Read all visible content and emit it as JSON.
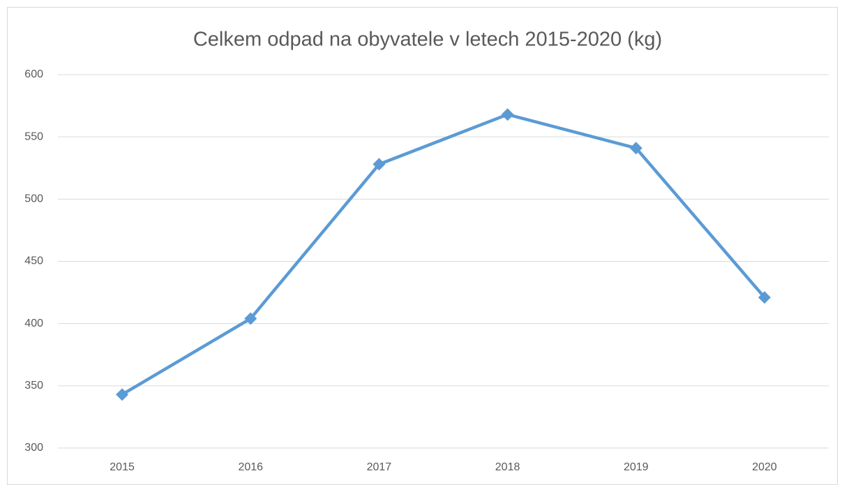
{
  "chart_data": {
    "type": "line",
    "title": "Celkem odpad na obyvatele v letech 2015-2020 (kg)",
    "categories": [
      "2015",
      "2016",
      "2017",
      "2018",
      "2019",
      "2020"
    ],
    "series": [
      {
        "name": "Celkem odpad",
        "color": "#5b9bd5",
        "values": [
          343,
          404,
          528,
          568,
          541,
          421
        ]
      }
    ],
    "ylim": [
      300,
      600
    ],
    "yticks": [
      300,
      350,
      400,
      450,
      500,
      550,
      600
    ],
    "grid": true
  }
}
